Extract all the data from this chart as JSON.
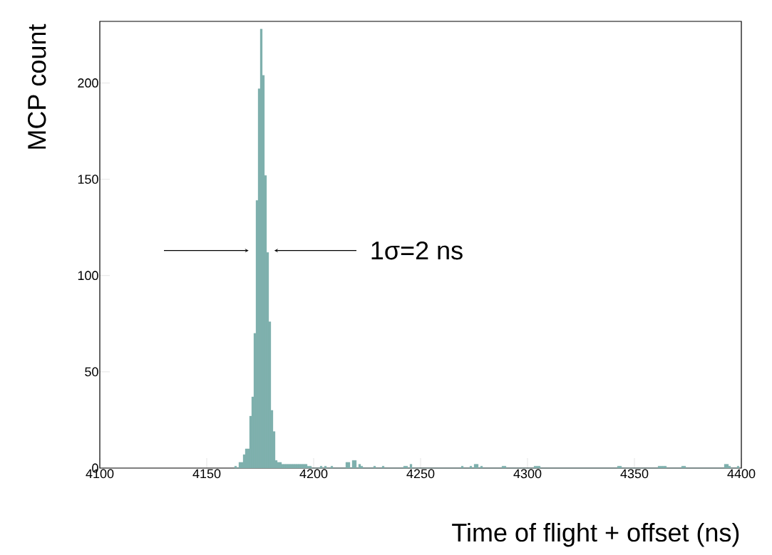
{
  "chart_data": {
    "type": "histogram",
    "xlabel": "Time of flight + offset (ns)",
    "ylabel": "MCP count",
    "bins": [
      4163,
      4164,
      4165,
      4166,
      4167,
      4168,
      4169,
      4170,
      4171,
      4172,
      4173,
      4174,
      4175,
      4176,
      4177,
      4178,
      4179,
      4180,
      4181,
      4182,
      4183,
      4184,
      4185,
      4186,
      4187,
      4188,
      4189,
      4190,
      4191,
      4192,
      4193,
      4194,
      4195,
      4196,
      4197,
      4198,
      4199,
      4200,
      4201,
      4202,
      4203,
      4204,
      4205,
      4206,
      4207,
      4208,
      4209,
      4210,
      4211,
      4212,
      4213,
      4214,
      4215,
      4216,
      4217,
      4218,
      4219,
      4220,
      4221,
      4222,
      4223,
      4224,
      4225,
      4226,
      4227,
      4228,
      4229,
      4230,
      4231,
      4232,
      4233,
      4234,
      4235,
      4236,
      4237,
      4238,
      4239,
      4240,
      4241,
      4242,
      4243,
      4244,
      4245,
      4246,
      4247,
      4248,
      4249,
      4250,
      4251,
      4252,
      4253,
      4254,
      4255,
      4256,
      4257,
      4258,
      4259,
      4260,
      4261,
      4262,
      4263,
      4264,
      4265,
      4266,
      4267,
      4268,
      4269,
      4270,
      4271,
      4272,
      4273,
      4274,
      4275,
      4276,
      4277,
      4278,
      4279,
      4280,
      4281,
      4282,
      4283,
      4284,
      4285,
      4286,
      4287,
      4288,
      4289,
      4290,
      4291,
      4292,
      4293,
      4294,
      4295,
      4296,
      4297,
      4298,
      4299,
      4300,
      4301,
      4302,
      4303,
      4304,
      4305,
      4306,
      4307,
      4308,
      4309,
      4310,
      4311,
      4312,
      4313,
      4314,
      4315,
      4316,
      4317,
      4318,
      4319,
      4320,
      4321,
      4322,
      4323,
      4324,
      4325,
      4326,
      4327,
      4328,
      4329,
      4330,
      4331,
      4332,
      4333,
      4334,
      4335,
      4336,
      4337,
      4338,
      4339,
      4340,
      4341,
      4342,
      4343,
      4344,
      4345,
      4346,
      4347,
      4348,
      4349,
      4350,
      4351,
      4352,
      4353,
      4354,
      4355,
      4356,
      4357,
      4358,
      4359,
      4360,
      4361,
      4362,
      4363,
      4364,
      4365,
      4366,
      4367,
      4368,
      4369,
      4370,
      4371,
      4372,
      4373,
      4374,
      4375,
      4376,
      4377,
      4378,
      4379,
      4380,
      4381,
      4382,
      4383,
      4384,
      4385,
      4386,
      4387,
      4388,
      4389,
      4390,
      4391,
      4392,
      4393,
      4394,
      4395,
      4396,
      4397,
      4398,
      4399
    ],
    "values": [
      1,
      0,
      3,
      3,
      7,
      10,
      10,
      27,
      37,
      70,
      139,
      197,
      228,
      204,
      152,
      112,
      76,
      30,
      19,
      4,
      3,
      3,
      2,
      2,
      2,
      2,
      2,
      2,
      2,
      2,
      2,
      2,
      2,
      2,
      1,
      1,
      0,
      0,
      0,
      0,
      1,
      0,
      1,
      0,
      0,
      1,
      0,
      0,
      0,
      0,
      0,
      0,
      3,
      3,
      0,
      4,
      4,
      0,
      2,
      1,
      0,
      0,
      0,
      0,
      0,
      1,
      0,
      0,
      0,
      1,
      0,
      0,
      0,
      0,
      0,
      0,
      0,
      0,
      0,
      1,
      1,
      0,
      2,
      0,
      0,
      0,
      0,
      0,
      0,
      0,
      0,
      0,
      0,
      0,
      0,
      0,
      0,
      0,
      0,
      0,
      0,
      0,
      0,
      0,
      0,
      0,
      1,
      0,
      0,
      0,
      1,
      0,
      2,
      2,
      0,
      1,
      0,
      0,
      0,
      0,
      0,
      0,
      0,
      0,
      0,
      1,
      1,
      0,
      0,
      0,
      0,
      0,
      0,
      0,
      0,
      0,
      0,
      0,
      0,
      0,
      1,
      1,
      1,
      0,
      0,
      0,
      0,
      0,
      0,
      0,
      0,
      0,
      0,
      0,
      0,
      0,
      0,
      0,
      0,
      0,
      0,
      0,
      0,
      0,
      0,
      0,
      0,
      0,
      0,
      0,
      0,
      0,
      0,
      0,
      0,
      0,
      0,
      0,
      0,
      1,
      1,
      0,
      0,
      0,
      0,
      0,
      0,
      0,
      0,
      0,
      0,
      0,
      0,
      0,
      0,
      0,
      0,
      0,
      1,
      1,
      1,
      1,
      0,
      0,
      0,
      0,
      0,
      0,
      0,
      1,
      1,
      0,
      0,
      0,
      0,
      0,
      0,
      0,
      0,
      0,
      0,
      0,
      0,
      0,
      0,
      0,
      0,
      0,
      0,
      2,
      2,
      1,
      0,
      0,
      0,
      1
    ],
    "color": "#7fb0ae",
    "xlim": [
      4100,
      4400
    ],
    "ylim": [
      0,
      232
    ],
    "xticks": [
      4100,
      4150,
      4200,
      4250,
      4300,
      4350,
      4400
    ],
    "yticks": [
      0,
      50,
      100,
      150,
      200
    ],
    "annotations": [
      "1σ=2 ns"
    ]
  }
}
